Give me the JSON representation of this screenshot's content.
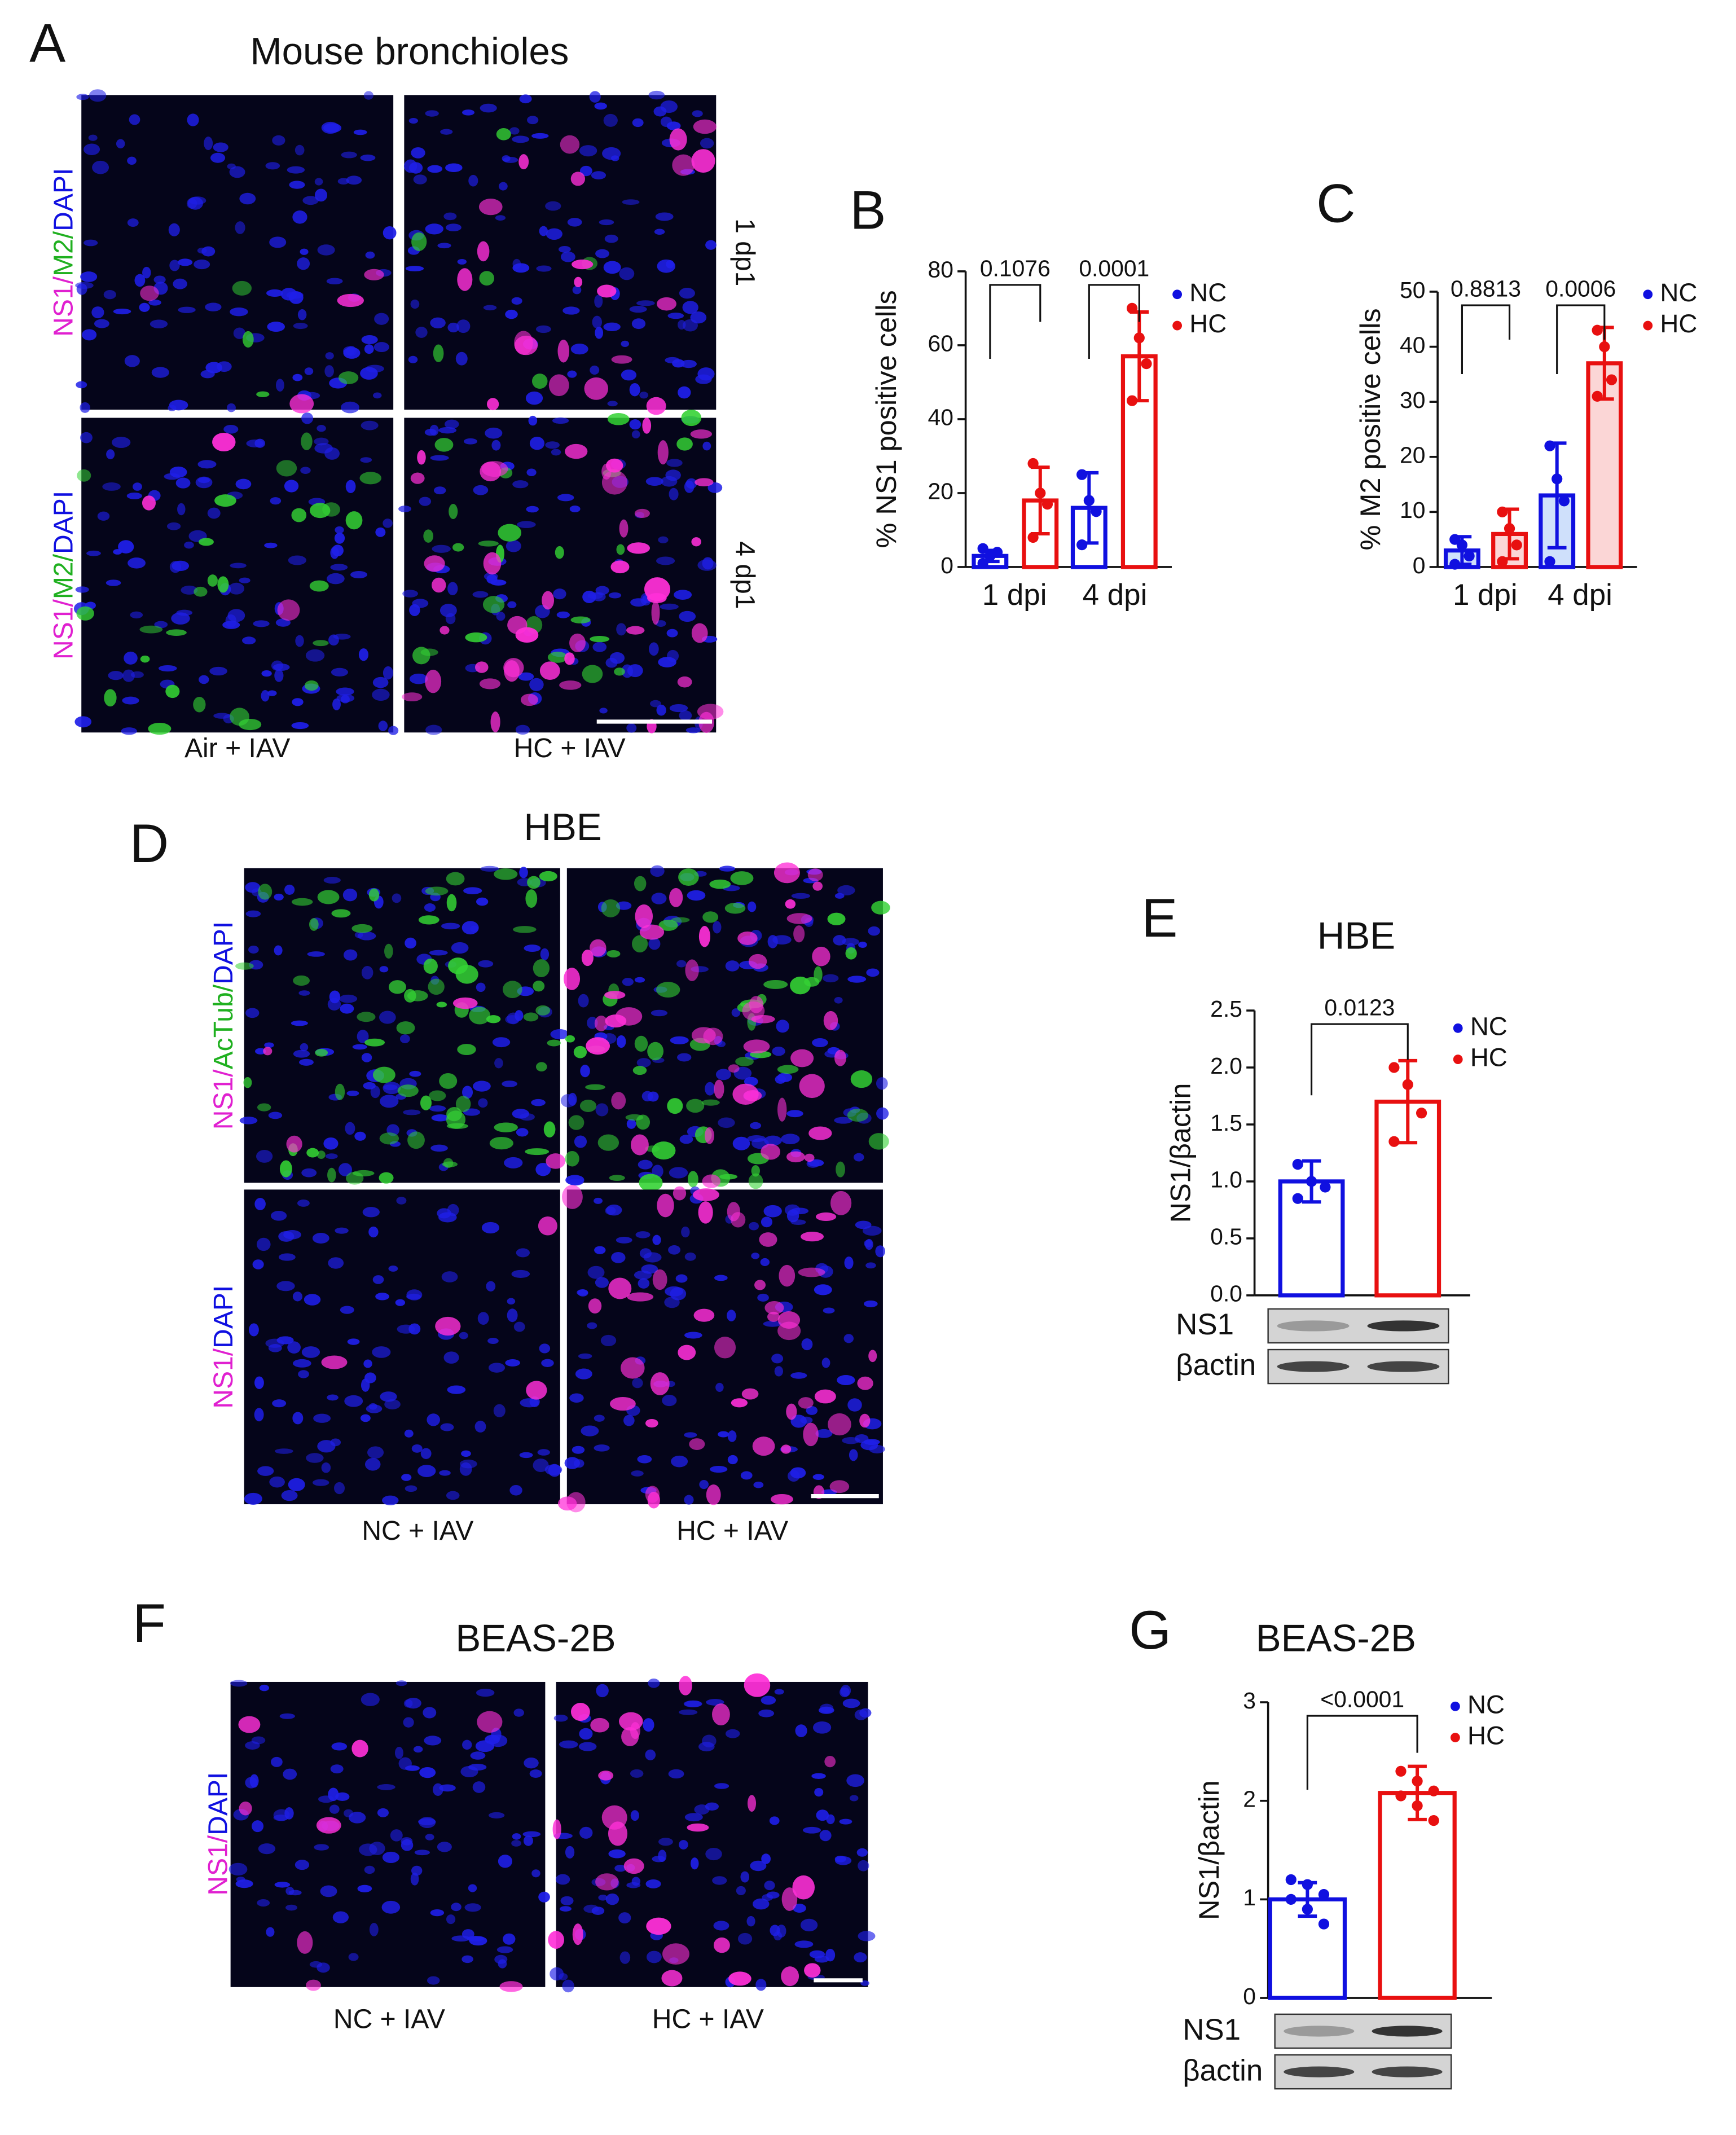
{
  "panel_a": {
    "letter": "A",
    "title": "Mouse bronchioles",
    "row_labels": [
      [
        "NS1/",
        "M2/",
        "DAPI"
      ],
      [
        "NS1/",
        "M2/",
        "DAPI"
      ]
    ],
    "time_labels": [
      "1 dp1",
      "4 dp1"
    ],
    "column_labels": [
      "Air + IAV",
      "HC + IAV"
    ]
  },
  "panel_d": {
    "letter": "D",
    "title": "HBE",
    "row_labels": [
      [
        "NS1/",
        "AcTub/",
        "DAPI"
      ],
      [
        "NS1/",
        "DAPI"
      ]
    ],
    "column_labels": [
      "NC + IAV",
      "HC + IAV"
    ]
  },
  "panel_f": {
    "letter": "F",
    "title": "BEAS-2B",
    "row_labels": [
      [
        "NS1/",
        "DAPI"
      ]
    ],
    "column_labels": [
      "NC + IAV",
      "HC + IAV"
    ]
  },
  "chart_data": [
    {
      "type": "bar",
      "letter": "B",
      "ylabel": "% NS1 positive cells",
      "categories": [
        "1 dpi",
        "4 dpi"
      ],
      "series": [
        {
          "name": "NC",
          "color": "#1010e0",
          "values": [
            3,
            16
          ],
          "errors": [
            1.5,
            9.5
          ],
          "points": [
            [
              1,
              3,
              4,
              5
            ],
            [
              25,
              18,
              15,
              6
            ]
          ]
        },
        {
          "name": "HC",
          "color": "#e81010",
          "values": [
            18,
            57
          ],
          "errors": [
            9,
            12
          ],
          "points": [
            [
              28,
              20,
              17,
              8
            ],
            [
              70,
              62,
              55,
              45
            ]
          ]
        }
      ],
      "annotations": [
        "0.1076",
        "0.0001"
      ],
      "ylim": [
        0,
        80
      ],
      "yticks": [
        0,
        20,
        40,
        60,
        80
      ]
    },
    {
      "type": "bar",
      "letter": "C",
      "ylabel": "% M2 positive cells",
      "categories": [
        "1 dpi",
        "4 dpi"
      ],
      "series": [
        {
          "name": "NC",
          "color": "#1010e0",
          "fill": "#cfe0fb",
          "values": [
            3,
            13
          ],
          "errors": [
            2.5,
            9.5
          ],
          "points": [
            [
              5,
              4,
              2,
              0.5
            ],
            [
              22,
              16,
              12,
              1
            ]
          ]
        },
        {
          "name": "HC",
          "color": "#e81010",
          "fill": "#fbd6d6",
          "values": [
            6,
            37
          ],
          "errors": [
            4.5,
            6.5
          ],
          "points": [
            [
              10,
              7,
              4,
              1
            ],
            [
              43,
              40,
              34,
              31
            ]
          ]
        }
      ],
      "annotations": [
        "0.8813",
        "0.0006"
      ],
      "ylim": [
        0,
        50
      ],
      "yticks": [
        0,
        10,
        20,
        30,
        40,
        50
      ]
    },
    {
      "type": "bar",
      "letter": "E",
      "title": "HBE",
      "ylabel": "NS1/βactin",
      "series": [
        {
          "name": "NC",
          "color": "#1010e0",
          "values": [
            1.0
          ],
          "errors": [
            0.18
          ],
          "points": [
            [
              1.15,
              1.0,
              0.95,
              0.85
            ]
          ]
        },
        {
          "name": "HC",
          "color": "#e81010",
          "values": [
            1.7
          ],
          "errors": [
            0.36
          ],
          "points": [
            [
              2.0,
              1.85,
              1.6,
              1.35
            ]
          ]
        }
      ],
      "annotations": [
        "0.0123"
      ],
      "ylim": [
        0,
        2.5
      ],
      "yticks": [
        {
          "value": 0,
          "label": "0.0"
        },
        0.5,
        {
          "value": 1,
          "label": "1.0"
        },
        1.5,
        {
          "value": 2,
          "label": "2.0"
        },
        2.5
      ],
      "blot_labels": [
        "NS1",
        "βactin"
      ]
    },
    {
      "type": "bar",
      "letter": "G",
      "title": "BEAS-2B",
      "ylabel": "NS1/βactin",
      "series": [
        {
          "name": "NC",
          "color": "#1010e0",
          "values": [
            1.0
          ],
          "errors": [
            0.17
          ],
          "points": [
            [
              1.2,
              1.15,
              1.05,
              1.0,
              0.9,
              0.75
            ]
          ]
        },
        {
          "name": "HC",
          "color": "#e81010",
          "values": [
            2.08
          ],
          "errors": [
            0.27
          ],
          "points": [
            [
              2.3,
              2.2,
              2.1,
              2.05,
              1.95,
              1.8
            ]
          ]
        }
      ],
      "annotations": [
        "<0.0001"
      ],
      "ylim": [
        0,
        3
      ],
      "yticks": [
        0,
        1,
        2,
        3
      ],
      "blot_labels": [
        "NS1",
        "βactin"
      ]
    }
  ]
}
